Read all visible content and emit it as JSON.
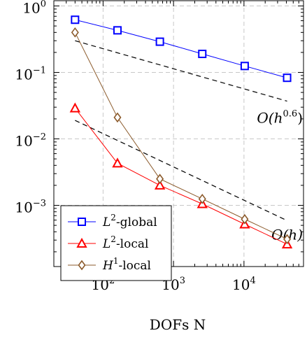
{
  "chart_data": {
    "type": "line",
    "title": "",
    "xlabel": "DOFs N",
    "ylabel": "",
    "xscale": "log",
    "yscale": "log",
    "xlim": [
      20,
      70000
    ],
    "ylim": [
      0.00012,
      1.2
    ],
    "grid": true,
    "legend_position": "bottom-left",
    "x_ticks": [
      {
        "value": 100,
        "base": "10",
        "exp": "2"
      },
      {
        "value": 1000,
        "base": "10",
        "exp": "3"
      },
      {
        "value": 10000,
        "base": "10",
        "exp": "4"
      }
    ],
    "y_ticks": [
      {
        "value": 1,
        "base": "10",
        "exp": "0"
      },
      {
        "value": 0.1,
        "base": "10",
        "exp": "−1"
      },
      {
        "value": 0.01,
        "base": "10",
        "exp": "−2"
      },
      {
        "value": 0.001,
        "base": "10",
        "exp": "−3"
      }
    ],
    "series": [
      {
        "name": "L²-global",
        "label_main": "L",
        "label_sup": "2",
        "label_rest": "-global",
        "color": "#0000ff",
        "marker": "square",
        "x": [
          40,
          160,
          640,
          2560,
          10240,
          40960
        ],
        "y": [
          0.62,
          0.43,
          0.29,
          0.19,
          0.125,
          0.083
        ]
      },
      {
        "name": "L²-local",
        "label_main": "L",
        "label_sup": "2",
        "label_rest": "-local",
        "color": "#ff0000",
        "marker": "triangle",
        "x": [
          40,
          160,
          640,
          2560,
          10240,
          40960
        ],
        "y": [
          0.029,
          0.0043,
          0.002,
          0.00105,
          0.00052,
          0.00026
        ]
      },
      {
        "name": "H¹-local",
        "label_main": "H",
        "label_sup": "1",
        "label_rest": "-local",
        "color": "#8b5a2b",
        "marker": "diamond",
        "x": [
          40,
          160,
          640,
          2560,
          10240,
          40960
        ],
        "y": [
          0.4,
          0.021,
          0.0025,
          0.00125,
          0.00062,
          0.00031
        ]
      }
    ],
    "reference_lines": [
      {
        "label_base": "O(h",
        "label_sup": "0.6",
        "label_close": ")",
        "x": [
          40,
          40960
        ],
        "y": [
          0.3,
          0.037
        ]
      },
      {
        "label_base": "O(h)",
        "label_sup": "",
        "label_close": "",
        "x": [
          40,
          40960
        ],
        "y": [
          0.019,
          0.00059
        ]
      }
    ]
  }
}
